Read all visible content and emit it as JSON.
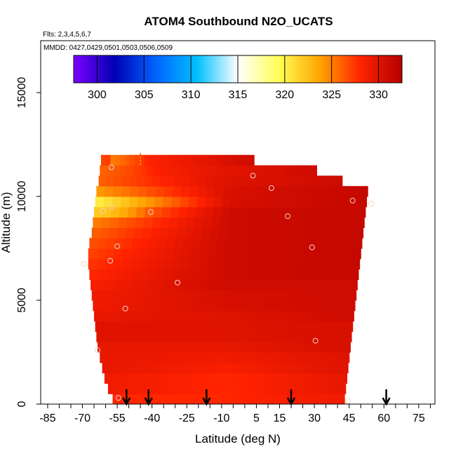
{
  "chart_data": {
    "type": "heatmap",
    "title": "ATOM4 Southbound N2O_UCATS",
    "flights_label": "Flts: 2,3,4,5,6,7",
    "dates_label": "MMDD: 0427,0429,0501,0503,0506,0509",
    "xlabel": "Latitude (deg N)",
    "ylabel": "Altitude (m)",
    "xlim": [
      -88,
      82
    ],
    "ylim": [
      0,
      17500
    ],
    "xticks": [
      -85,
      -70,
      -55,
      -40,
      -25,
      -10,
      5,
      15,
      30,
      45,
      60,
      75
    ],
    "x_minor_step": 5,
    "yticks": [
      0,
      5000,
      10000,
      15000
    ],
    "colorbar": {
      "range": [
        297.5,
        332.5
      ],
      "ticks": [
        300,
        305,
        310,
        315,
        320,
        325,
        330
      ],
      "colors": [
        "#7d00ff",
        "#0000b4",
        "#0064ff",
        "#00bfff",
        "#ffffff",
        "#ffff55",
        "#ffa500",
        "#ff2200",
        "#b40000"
      ]
    },
    "background_value": 330,
    "curtain": {
      "altitude_bins_m": [
        0,
        500,
        1000,
        1500,
        2000,
        2500,
        3000,
        3500,
        4000,
        4500,
        5000,
        5500,
        6000,
        6500,
        7000,
        7500,
        8000,
        8500,
        9000,
        9500,
        10000,
        10500,
        11000,
        11500
      ],
      "left_edge_lat": [
        -57,
        -59,
        -60.5,
        -61.5,
        -62.5,
        -63.5,
        -64,
        -64.5,
        -65,
        -65.5,
        -66,
        -66.5,
        -67,
        -67.5,
        -67.5,
        -67,
        -66,
        -65.5,
        -65,
        -64.5,
        -64,
        -63,
        -62.5,
        -62
      ],
      "right_edge_lat": [
        43,
        43.5,
        44,
        44.5,
        45,
        45.5,
        46,
        46.5,
        47,
        47.5,
        48,
        48.5,
        49,
        49.5,
        50,
        50.5,
        51,
        51.5,
        52,
        52.5,
        53,
        42,
        31,
        4
      ],
      "values_south": [
        328,
        329,
        329,
        329.5,
        329.5,
        329.5,
        330,
        330,
        329.5,
        329,
        329,
        328.5,
        328,
        327.5,
        327,
        326.5,
        326,
        325,
        323,
        320,
        324,
        326,
        327,
        327
      ],
      "values_mid": [
        328,
        328,
        328,
        328.5,
        329,
        329.5,
        330,
        330,
        330,
        330.5,
        330.5,
        331,
        331,
        331,
        331,
        331,
        331,
        331,
        331,
        330.5,
        330.5,
        330,
        329.5,
        329
      ],
      "values_north": [
        329,
        329.5,
        329.5,
        330,
        330,
        330.5,
        330.5,
        330.5,
        331,
        331,
        331,
        331,
        331.5,
        331.5,
        331.5,
        331.5,
        331.5,
        331.5,
        331.5,
        331.5,
        331.5,
        331,
        331,
        331
      ],
      "anomalies": [
        {
          "altitude_m": 9000,
          "lat_from": -65,
          "lat_to": -44,
          "value": 322
        },
        {
          "altitude_m": 11000,
          "lat_from": -63,
          "lat_to": -40,
          "value": 326
        },
        {
          "altitude_m": 11500,
          "lat_from": -59,
          "lat_to": -42,
          "value": 325
        }
      ]
    },
    "sample_points": [
      {
        "lat": -57.5,
        "alt": 11400
      },
      {
        "lat": 3.5,
        "alt": 11000
      },
      {
        "lat": 11.5,
        "alt": 10400
      },
      {
        "lat": -57.5,
        "alt": 9500
      },
      {
        "lat": -61,
        "alt": 9300
      },
      {
        "lat": -40.5,
        "alt": 9250
      },
      {
        "lat": 18.5,
        "alt": 9050
      },
      {
        "lat": 46.5,
        "alt": 9800
      },
      {
        "lat": 54.5,
        "alt": 9650
      },
      {
        "lat": -55,
        "alt": 7600
      },
      {
        "lat": 29,
        "alt": 7550
      },
      {
        "lat": -58,
        "alt": 6900
      },
      {
        "lat": -69.5,
        "alt": 6750
      },
      {
        "lat": -29,
        "alt": 5850
      },
      {
        "lat": -51.5,
        "alt": 4600
      },
      {
        "lat": 30.5,
        "alt": 3050
      },
      {
        "lat": -63.5,
        "alt": 2600
      },
      {
        "lat": -54.5,
        "alt": 300
      },
      {
        "lat": 44.5,
        "alt": 150
      }
    ],
    "arrow_lats": [
      -51,
      -41.5,
      -16.5,
      20,
      61
    ],
    "vertical_marker": {
      "lat": -45,
      "alt_from": 11500,
      "alt_to": 12100
    }
  }
}
